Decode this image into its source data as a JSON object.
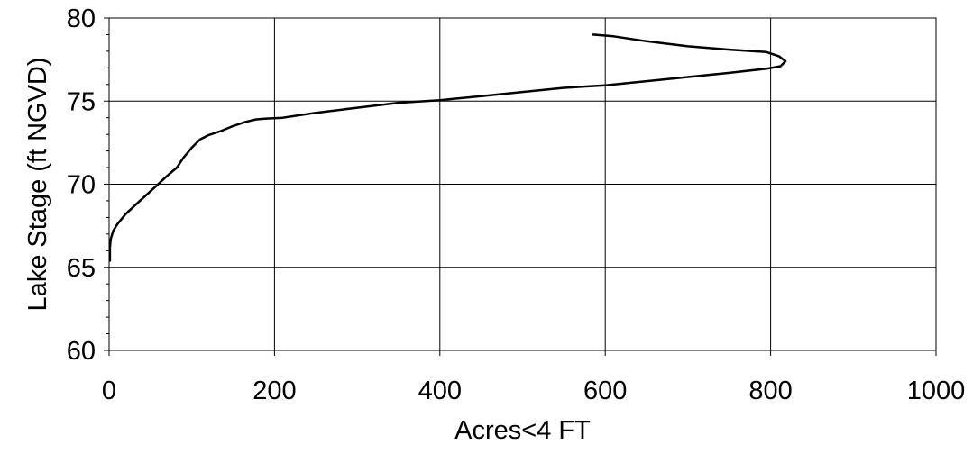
{
  "chart_data": {
    "type": "line",
    "title": "",
    "xlabel": "Acres<4 FT",
    "ylabel": "Lake Stage (ft NGVD)",
    "xlim": [
      0,
      1000
    ],
    "ylim": [
      60,
      80
    ],
    "x_ticks": [
      "0",
      "200",
      "400",
      "600",
      "800",
      "1000"
    ],
    "y_ticks": [
      "60",
      "65",
      "70",
      "75",
      "80"
    ],
    "grid": true,
    "legend": "none",
    "line_color": "#000000",
    "series": [
      {
        "x": [
          1,
          1,
          2,
          5,
          10,
          20,
          35,
          55,
          70,
          82,
          90,
          100,
          110,
          120,
          135,
          150,
          165,
          178,
          190,
          210,
          250,
          300,
          350,
          400,
          450,
          500,
          550,
          600,
          650,
          700,
          750,
          795,
          812,
          818,
          810,
          795,
          750,
          700,
          650,
          610,
          585
        ],
        "y": [
          65.4,
          66.2,
          66.7,
          67.2,
          67.6,
          68.2,
          68.9,
          69.8,
          70.5,
          71.0,
          71.6,
          72.2,
          72.7,
          72.95,
          73.2,
          73.5,
          73.75,
          73.9,
          73.95,
          74.0,
          74.3,
          74.6,
          74.9,
          75.05,
          75.3,
          75.55,
          75.8,
          75.95,
          76.2,
          76.45,
          76.7,
          76.95,
          77.1,
          77.4,
          77.7,
          77.95,
          78.1,
          78.3,
          78.6,
          78.9,
          79.0
        ]
      }
    ]
  }
}
